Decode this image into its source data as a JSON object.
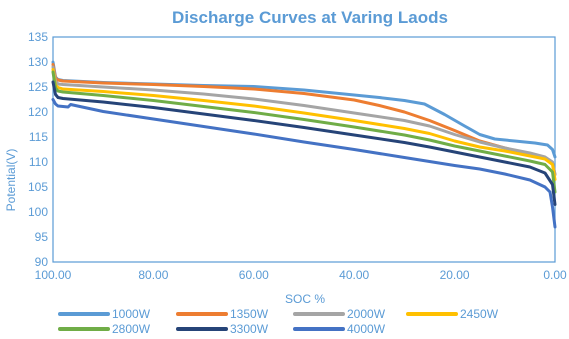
{
  "chart_data": {
    "type": "line",
    "title": "Discharge Curves at Varing Laods",
    "xlabel": "SOC %",
    "ylabel": "Potential(V)",
    "xlim": [
      100,
      0
    ],
    "ylim": [
      90,
      135
    ],
    "x_reversed": true,
    "x_ticks": [
      "100.00",
      "80.00",
      "60.00",
      "40.00",
      "20.00",
      "0.00"
    ],
    "x_tick_values": [
      100,
      80,
      60,
      40,
      20,
      0
    ],
    "y_ticks": [
      "90",
      "95",
      "100",
      "105",
      "110",
      "115",
      "120",
      "125",
      "130",
      "135"
    ],
    "y_tick_values": [
      90,
      95,
      100,
      105,
      110,
      115,
      120,
      125,
      130,
      135
    ],
    "grid": false,
    "legend_position": "bottom",
    "colors": {
      "text": "#5b9bd5",
      "axis": "#5b9bd5"
    },
    "series": [
      {
        "name": "1000W",
        "color": "#5b9bd5",
        "points": [
          [
            100,
            130
          ],
          [
            99.5,
            127
          ],
          [
            99,
            126.5
          ],
          [
            98,
            126.3
          ],
          [
            90,
            125.9
          ],
          [
            80,
            125.6
          ],
          [
            70,
            125.3
          ],
          [
            60,
            125.1
          ],
          [
            50,
            124.4
          ],
          [
            40,
            123.4
          ],
          [
            35,
            122.9
          ],
          [
            30,
            122.3
          ],
          [
            26,
            121.6
          ],
          [
            22,
            119.5
          ],
          [
            18,
            117.2
          ],
          [
            15,
            115.5
          ],
          [
            12,
            114.6
          ],
          [
            8,
            114.2
          ],
          [
            4,
            113.8
          ],
          [
            1.5,
            113.4
          ],
          [
            0.5,
            112.5
          ],
          [
            0,
            111
          ]
        ]
      },
      {
        "name": "1350W",
        "color": "#ed7d31",
        "points": [
          [
            100,
            129.5
          ],
          [
            99.5,
            126.8
          ],
          [
            99,
            126.4
          ],
          [
            98,
            126.2
          ],
          [
            90,
            125.8
          ],
          [
            80,
            125.5
          ],
          [
            70,
            125.1
          ],
          [
            60,
            124.6
          ],
          [
            50,
            123.7
          ],
          [
            40,
            122.4
          ],
          [
            35,
            121.3
          ],
          [
            30,
            120
          ],
          [
            25,
            118.3
          ],
          [
            20,
            116.3
          ],
          [
            15,
            114.2
          ],
          [
            10,
            112.8
          ],
          [
            5,
            111.5
          ],
          [
            2,
            110.8
          ],
          [
            0.5,
            109.8
          ],
          [
            0,
            107.5
          ]
        ]
      },
      {
        "name": "2000W",
        "color": "#a5a5a5",
        "points": [
          [
            100,
            129
          ],
          [
            99.5,
            126.2
          ],
          [
            99,
            125.6
          ],
          [
            98,
            125.5
          ],
          [
            90,
            125
          ],
          [
            80,
            124.4
          ],
          [
            70,
            123.6
          ],
          [
            60,
            122.6
          ],
          [
            50,
            121.3
          ],
          [
            40,
            119.8
          ],
          [
            30,
            118.3
          ],
          [
            25,
            117.2
          ],
          [
            20,
            115.5
          ],
          [
            15,
            114
          ],
          [
            10,
            112.8
          ],
          [
            5,
            111.8
          ],
          [
            2,
            111
          ],
          [
            0.5,
            110
          ],
          [
            0,
            107.5
          ]
        ]
      },
      {
        "name": "2450W",
        "color": "#ffc000",
        "points": [
          [
            100,
            128.5
          ],
          [
            99.5,
            125.4
          ],
          [
            99,
            124.9
          ],
          [
            98,
            124.6
          ],
          [
            90,
            124.1
          ],
          [
            80,
            123.3
          ],
          [
            70,
            122.3
          ],
          [
            60,
            121.2
          ],
          [
            50,
            119.8
          ],
          [
            40,
            118.3
          ],
          [
            30,
            116.7
          ],
          [
            25,
            115.7
          ],
          [
            20,
            114.2
          ],
          [
            15,
            113
          ],
          [
            10,
            112.2
          ],
          [
            5,
            111.2
          ],
          [
            2,
            110.6
          ],
          [
            0.5,
            109.5
          ],
          [
            0,
            106.5
          ]
        ]
      },
      {
        "name": "2800W",
        "color": "#70ad47",
        "points": [
          [
            100,
            128
          ],
          [
            99.5,
            124.8
          ],
          [
            99,
            124.2
          ],
          [
            98,
            124
          ],
          [
            90,
            123.3
          ],
          [
            80,
            122.3
          ],
          [
            70,
            121.1
          ],
          [
            60,
            119.9
          ],
          [
            50,
            118.5
          ],
          [
            40,
            117
          ],
          [
            30,
            115.4
          ],
          [
            25,
            114.4
          ],
          [
            20,
            113.2
          ],
          [
            15,
            112.2
          ],
          [
            10,
            111.2
          ],
          [
            5,
            110.2
          ],
          [
            2,
            109.5
          ],
          [
            0.5,
            108
          ],
          [
            0,
            104
          ]
        ]
      },
      {
        "name": "3300W",
        "color": "#264478",
        "points": [
          [
            100,
            126
          ],
          [
            99.5,
            123.5
          ],
          [
            99,
            122.9
          ],
          [
            98,
            122.7
          ],
          [
            90,
            122
          ],
          [
            80,
            120.9
          ],
          [
            70,
            119.6
          ],
          [
            60,
            118.3
          ],
          [
            50,
            116.9
          ],
          [
            40,
            115.4
          ],
          [
            30,
            113.9
          ],
          [
            25,
            113
          ],
          [
            20,
            112
          ],
          [
            15,
            111
          ],
          [
            10,
            110
          ],
          [
            5,
            109
          ],
          [
            2,
            107.8
          ],
          [
            0.5,
            105.5
          ],
          [
            0,
            101.5
          ]
        ]
      },
      {
        "name": "4000W",
        "color": "#4472c4",
        "points": [
          [
            100,
            122.5
          ],
          [
            99.5,
            121.6
          ],
          [
            99,
            121.2
          ],
          [
            97,
            121
          ],
          [
            96.5,
            121.5
          ],
          [
            90,
            120.1
          ],
          [
            80,
            118.6
          ],
          [
            70,
            117.1
          ],
          [
            60,
            115.6
          ],
          [
            50,
            114
          ],
          [
            40,
            112.5
          ],
          [
            30,
            110.9
          ],
          [
            25,
            110.1
          ],
          [
            20,
            109.3
          ],
          [
            15,
            108.6
          ],
          [
            10,
            107.6
          ],
          [
            5,
            106.4
          ],
          [
            2,
            105
          ],
          [
            1,
            104
          ],
          [
            0.5,
            101
          ],
          [
            0,
            97
          ]
        ]
      }
    ]
  }
}
